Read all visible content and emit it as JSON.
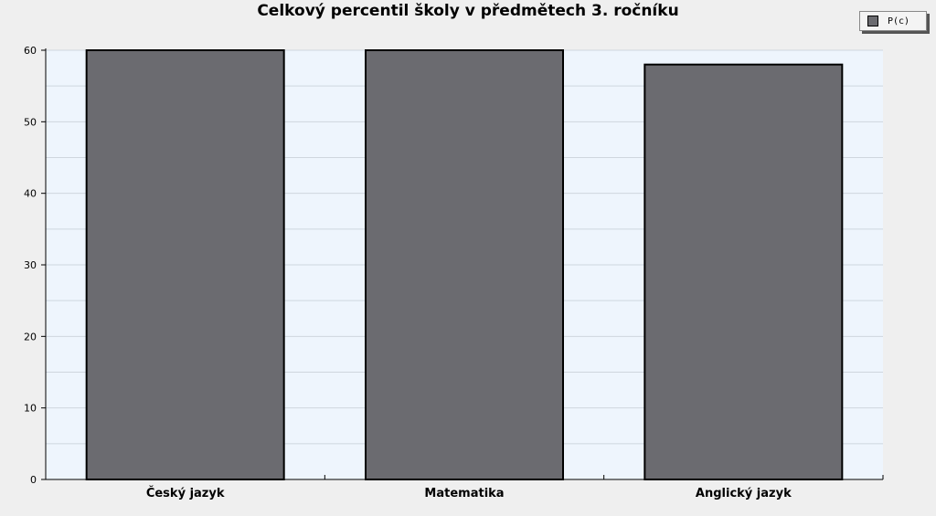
{
  "chart_data": {
    "type": "bar",
    "title": "Celkový percentil školy v předmětech 3. ročníku",
    "categories": [
      "Český jazyk",
      "Matematika",
      "Anglický jazyk"
    ],
    "series": [
      {
        "name": "P(c)",
        "values": [
          60,
          60,
          58
        ]
      }
    ],
    "ylim": [
      0,
      60
    ],
    "yticks": [
      0,
      10,
      20,
      30,
      40,
      50,
      60
    ],
    "xlabel": "",
    "ylabel": "",
    "grid": true,
    "legend_position": "top-right",
    "colors": {
      "bar": "#6b6b70",
      "plot_bg": "#eef5fd",
      "grid": "#cfd6de",
      "page_bg": "#efefef"
    }
  }
}
